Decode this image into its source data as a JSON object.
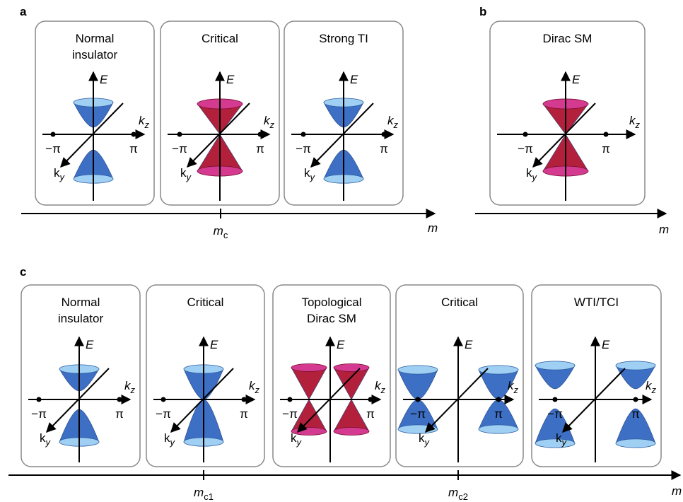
{
  "panel_letters": [
    "a",
    "b",
    "c"
  ],
  "axis_labels": {
    "energy": "E",
    "kz": "k",
    "kz_sub": "z",
    "ky": "k",
    "ky_sub": "y",
    "minus_pi": "−π",
    "pi": "π"
  },
  "panel_a": {
    "boxes": [
      {
        "title": [
          "Normal",
          "insulator"
        ]
      },
      {
        "title": [
          "Critical"
        ]
      },
      {
        "title": [
          "Strong TI"
        ]
      }
    ],
    "axis": {
      "label": "m",
      "ticks": [
        {
          "base": "m",
          "sub": "c"
        }
      ]
    }
  },
  "panel_b": {
    "boxes": [
      {
        "title": [
          "Dirac SM"
        ]
      }
    ],
    "axis": {
      "label": "m"
    }
  },
  "panel_c": {
    "boxes": [
      {
        "title": [
          "Normal",
          "insulator"
        ]
      },
      {
        "title": [
          "Critical"
        ]
      },
      {
        "title": [
          "Topological",
          "Dirac SM"
        ]
      },
      {
        "title": [
          "Critical"
        ]
      },
      {
        "title": [
          "WTI/TCI"
        ]
      }
    ],
    "axis": {
      "label": "m",
      "ticks": [
        {
          "base": "m",
          "sub": "c1"
        },
        {
          "base": "m",
          "sub": "c2"
        }
      ]
    }
  }
}
